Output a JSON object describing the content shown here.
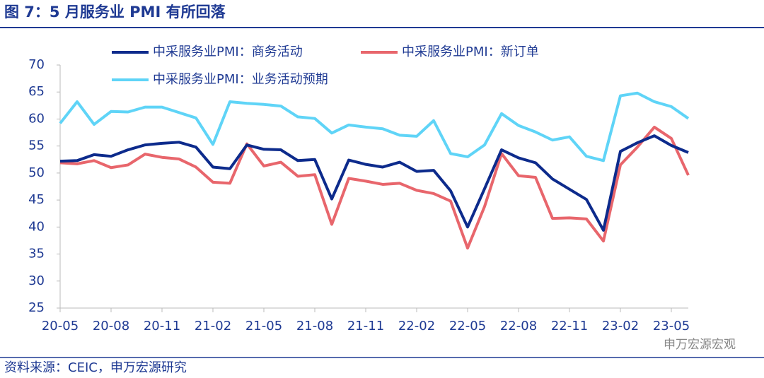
{
  "header": {
    "title": "图 7：5 月服务业 PMI 有所回落"
  },
  "chart_data": {
    "type": "line",
    "categories": [
      "20-05",
      null,
      null,
      "20-08",
      null,
      null,
      "20-11",
      null,
      null,
      "21-02",
      null,
      null,
      "21-05",
      null,
      null,
      "21-08",
      null,
      null,
      "21-11",
      null,
      null,
      "22-02",
      null,
      null,
      "22-05",
      null,
      null,
      "22-08",
      null,
      null,
      "22-11",
      null,
      null,
      "23-02",
      null,
      null,
      "23-05",
      null
    ],
    "series": [
      {
        "name": "中采服务业PMI：商务活动",
        "color": "#0d2b8c",
        "values": [
          52.2,
          52.3,
          53.4,
          53.1,
          54.3,
          55.2,
          55.5,
          55.7,
          54.8,
          51.1,
          50.8,
          55.2,
          54.4,
          54.3,
          52.3,
          52.5,
          45.2,
          52.4,
          51.6,
          51.1,
          52.0,
          50.3,
          50.5,
          46.7,
          40.0,
          47.1,
          54.3,
          52.8,
          51.9,
          48.9,
          47.0,
          45.1,
          39.4,
          54.0,
          55.6,
          56.9,
          55.1,
          53.8
        ]
      },
      {
        "name": "中采服务业PMI：新订单",
        "color": "#e8666c",
        "values": [
          51.9,
          51.7,
          52.3,
          51.0,
          51.5,
          53.5,
          52.9,
          52.6,
          51.1,
          48.3,
          48.1,
          55.4,
          51.3,
          52.0,
          49.4,
          49.7,
          40.5,
          49.0,
          48.5,
          47.9,
          48.1,
          46.8,
          46.2,
          44.8,
          36.1,
          43.8,
          53.6,
          49.5,
          49.2,
          41.6,
          41.7,
          41.5,
          37.4,
          51.5,
          54.8,
          58.5,
          56.4,
          49.6
        ]
      },
      {
        "name": "中采服务业PMI：业务活动预期",
        "color": "#5fd4f7",
        "values": [
          59.2,
          63.2,
          59.0,
          61.4,
          61.3,
          62.2,
          62.2,
          61.2,
          60.2,
          55.3,
          63.2,
          62.9,
          62.7,
          62.4,
          60.4,
          60.1,
          57.4,
          58.9,
          58.5,
          58.2,
          57.0,
          56.8,
          59.7,
          53.6,
          53.0,
          55.2,
          61.0,
          58.8,
          57.6,
          56.1,
          56.7,
          53.1,
          52.3,
          64.3,
          64.8,
          63.2,
          62.3,
          60.1
        ]
      }
    ],
    "ylim": [
      25,
      70
    ],
    "yticks": [
      25,
      30,
      35,
      40,
      45,
      50,
      55,
      60,
      65,
      70
    ],
    "grid": false,
    "legend": "top"
  },
  "footer": {
    "source": "资料来源：CEIC，申万宏源研究",
    "watermark": "申万宏源宏观"
  }
}
